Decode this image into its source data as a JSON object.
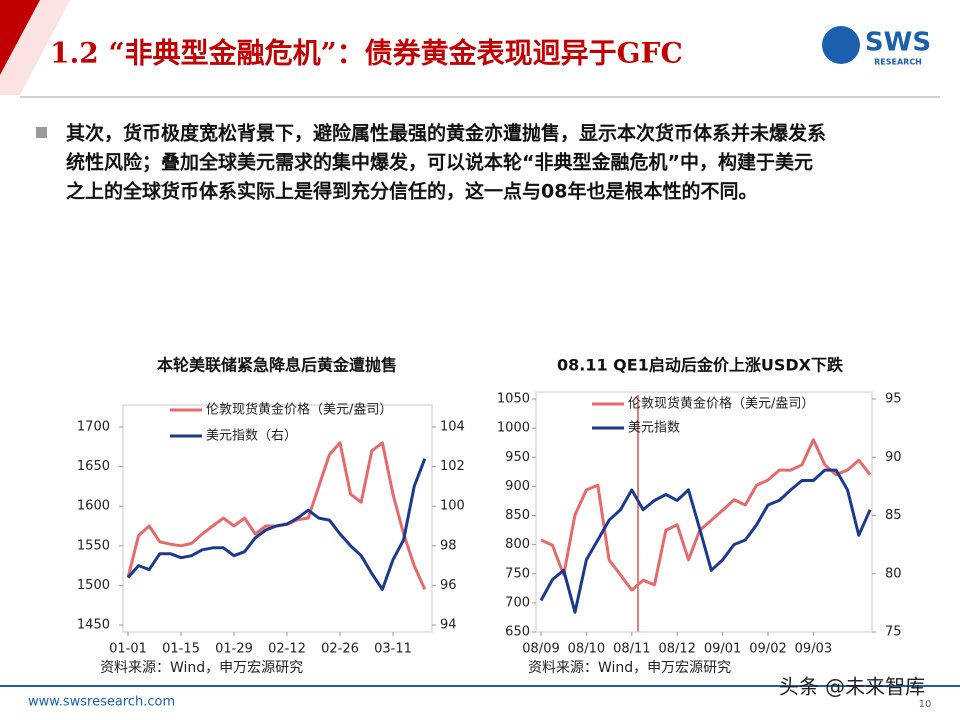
{
  "header": {
    "title": "1.2 “非典型金融危机”：债券黄金表现迥异于GFC",
    "logo": "SWS",
    "logo_sub": "RESEARCH"
  },
  "body": {
    "lines": [
      "其次，货币极度宽松背景下，避险属性最强的黄金亦遭抛售，显示本次货币体系并未爆发系",
      "统性风险；叠加全球美元需求的集中爆发，可以说本轮“非典型金融危机”中，构建于美元",
      "之上的全球货币体系实际上是得到充分信任的，这一点与08年也是根本性的不同。"
    ]
  },
  "chart_data": [
    {
      "type": "line",
      "title": "本轮美联储紧急降息后黄金遭抛售",
      "source": "资料来源：Wind，申万宏源研究",
      "categories": [
        "01-01",
        null,
        null,
        null,
        null,
        "01-15",
        null,
        null,
        null,
        null,
        "01-29",
        null,
        null,
        null,
        null,
        "02-12",
        null,
        null,
        null,
        null,
        "02-26",
        null,
        null,
        null,
        null,
        "03-11",
        null,
        null,
        null
      ],
      "series": [
        {
          "name": "伦敦现货黄金价格（美元/盎司）",
          "color": "#e46a6c",
          "values": [
            1510,
            1563,
            1575,
            1555,
            1552,
            1550,
            1553,
            1565,
            1575,
            1585,
            1575,
            1585,
            1565,
            1575,
            1575,
            1577,
            1583,
            1585,
            1625,
            1665,
            1680,
            1615,
            1605,
            1670,
            1680,
            1615,
            1565,
            1525,
            1495
          ]
        },
        {
          "name": "美元指数（右）",
          "color": "#1b3a8c",
          "axis": "y2",
          "values": [
            96.4,
            97.0,
            96.8,
            97.6,
            97.6,
            97.4,
            97.5,
            97.8,
            97.9,
            97.9,
            97.5,
            97.7,
            98.4,
            98.8,
            99.0,
            99.1,
            99.4,
            99.8,
            99.4,
            99.3,
            98.6,
            98.0,
            97.5,
            96.6,
            95.8,
            97.3,
            98.3,
            101.0,
            102.4
          ]
        }
      ],
      "ylim": [
        1450,
        1700
      ],
      "yticks": [
        1450,
        1500,
        1550,
        1600,
        1650,
        1700
      ],
      "y2lim": [
        94,
        104
      ],
      "y2ticks": [
        94,
        96,
        98,
        100,
        102,
        104
      ]
    },
    {
      "type": "line",
      "title": "08.11 QE1启动后金价上涨USDX下跌",
      "source": "资料来源：Wind，申万宏源研究",
      "categories": [
        "08/09",
        null,
        null,
        null,
        "08/10",
        null,
        null,
        null,
        "08/11",
        null,
        null,
        null,
        "08/12",
        null,
        null,
        null,
        "09/01",
        null,
        null,
        null,
        "09/02",
        null,
        null,
        null,
        "09/03",
        null,
        null,
        null,
        null,
        null
      ],
      "series": [
        {
          "name": "伦敦现货黄金价格（美元/盎司）",
          "color": "#e46a6c",
          "values": [
            808,
            799,
            748,
            851,
            894,
            902,
            774,
            748,
            722,
            739,
            731,
            825,
            834,
            774,
            825,
            842,
            859,
            877,
            868,
            902,
            911,
            928,
            928,
            937,
            980,
            937,
            920,
            928,
            945,
            920
          ]
        },
        {
          "name": "美元指数",
          "color": "#1b3a8c",
          "axis": "y2",
          "values": [
            77.7,
            79.5,
            80.3,
            76.7,
            81.2,
            82.9,
            84.6,
            85.5,
            87.2,
            85.5,
            86.3,
            86.8,
            86.3,
            87.2,
            83.8,
            80.3,
            81.2,
            82.5,
            82.9,
            84.2,
            85.9,
            86.3,
            87.2,
            88.0,
            88.0,
            88.9,
            88.9,
            87.2,
            83.3,
            85.5
          ]
        }
      ],
      "ylim": [
        650,
        1050
      ],
      "yticks": [
        650,
        700,
        750,
        800,
        850,
        900,
        950,
        1000,
        1050
      ],
      "y2lim": [
        75,
        95
      ],
      "y2ticks": [
        75,
        80,
        85,
        90,
        95
      ]
    }
  ],
  "footer": {
    "url": "www.swsresearch.com",
    "page": "10",
    "watermark": "头条 @未来智库"
  }
}
